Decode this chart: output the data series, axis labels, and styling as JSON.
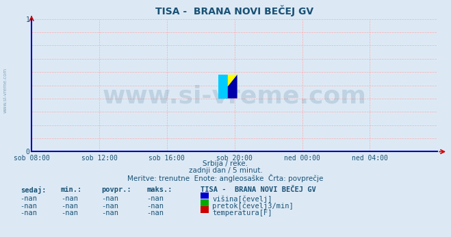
{
  "title": "TISA -  BRANA NOVI BEČEJ GV",
  "title_color": "#1a5276",
  "title_fontsize": 10,
  "bg_color": "#dce9f5",
  "plot_bg_color": "#dce9f5",
  "grid_color": "#ffaaaa",
  "axis_line_color": "#0000bb",
  "arrow_color": "#cc0000",
  "watermark_text": "www.si-vreme.com",
  "watermark_color": "#1a5276",
  "watermark_alpha": 0.15,
  "watermark_fontsize": 26,
  "sidebar_text": "www.si-vreme.com",
  "sidebar_color": "#1a5276",
  "ylim": [
    0,
    1
  ],
  "yticks": [
    0,
    1
  ],
  "xtick_labels": [
    "sob 08:00",
    "sob 12:00",
    "sob 16:00",
    "sob 20:00",
    "ned 00:00",
    "ned 04:00"
  ],
  "xtick_positions": [
    0,
    4,
    8,
    12,
    16,
    20
  ],
  "xmax": 24,
  "tick_label_color": "#1a5276",
  "sub_text1": "Srbija / reke.",
  "sub_text2": "zadnji dan / 5 minut.",
  "sub_text3": "Meritve: trenutne  Enote: angleosaške  Črta: povprečje",
  "sub_text_color": "#1a5276",
  "sub_fontsize": 7.5,
  "table_header": [
    "sedaj:",
    "min.:",
    "povpr.:",
    "maks.:",
    "TISA -  BRANA NOVI BEČEJ GV"
  ],
  "table_rows": [
    [
      "-nan",
      "-nan",
      "-nan",
      "-nan",
      "višina[čevelj]",
      "#0000cc"
    ],
    [
      "-nan",
      "-nan",
      "-nan",
      "-nan",
      "pretok[čevelj3/min]",
      "#00aa00"
    ],
    [
      "-nan",
      "-nan",
      "-nan",
      "-nan",
      "temperatura[F]",
      "#cc0000"
    ]
  ],
  "table_color": "#1a5276",
  "table_fontsize": 7.5,
  "logo_cyan": "#00ccff",
  "logo_yellow": "#ffff00",
  "logo_darkblue": "#0000aa"
}
